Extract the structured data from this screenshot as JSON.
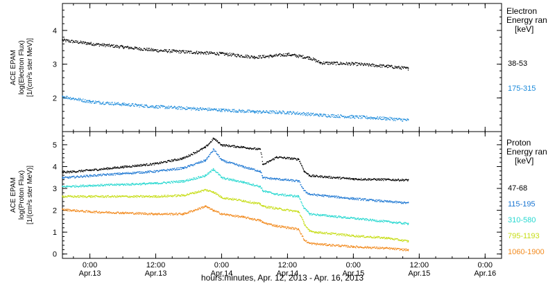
{
  "xaxis": {
    "label": "hours:minutes, Apr. 12, 2013 - Apr. 16, 2013",
    "tick_times": [
      "0:00",
      "12:00",
      "0:00",
      "12:00",
      "0:00",
      "12:00",
      "0:00"
    ],
    "tick_dates": [
      "Apr.13",
      "Apr.13",
      "Apr.14",
      "Apr.14",
      "Apr.15",
      "Apr.15",
      "Apr.16"
    ],
    "tick_hours": [
      0,
      12,
      24,
      36,
      48,
      60,
      72
    ],
    "range_hours": [
      -5,
      75
    ],
    "data_end_hours": 58
  },
  "chart_data": [
    {
      "type": "scatter",
      "name": "electron",
      "ylabel_lines": [
        "ACE EPAM",
        "log(Electron Flux)",
        "[1/(cm²s ster MeV)]"
      ],
      "ylim": [
        1.0,
        4.8
      ],
      "yticks": [
        2,
        3,
        4
      ],
      "legend": {
        "title_lines": [
          "Electron",
          "Energy ran"
        ],
        "unit": "[keV]",
        "placement": "right"
      },
      "series": [
        {
          "name": "38-53",
          "color": "#000000",
          "x": [
            -5,
            0,
            6,
            12,
            18,
            24,
            30,
            33,
            36,
            40,
            42,
            48,
            54,
            58
          ],
          "y": [
            3.72,
            3.62,
            3.52,
            3.42,
            3.37,
            3.32,
            3.22,
            3.25,
            3.3,
            3.2,
            3.05,
            3.02,
            2.95,
            2.88
          ]
        },
        {
          "name": "175-315",
          "color": "#1b8adb",
          "x": [
            -5,
            0,
            6,
            12,
            18,
            24,
            30,
            36,
            42,
            48,
            54,
            58
          ],
          "y": [
            2.05,
            1.9,
            1.82,
            1.75,
            1.7,
            1.65,
            1.6,
            1.58,
            1.5,
            1.45,
            1.4,
            1.35
          ]
        }
      ]
    },
    {
      "type": "scatter",
      "name": "proton",
      "ylabel_lines": [
        "ACE EPAM",
        "log(Proton Flux)",
        "[1/(cm²s ster MeV)]"
      ],
      "ylim": [
        -0.2,
        5.6
      ],
      "yticks": [
        0,
        1,
        2,
        3,
        4,
        5
      ],
      "legend": {
        "title_lines": [
          "Proton",
          "Energy ran"
        ],
        "unit": "[keV]",
        "placement": "right"
      },
      "series": [
        {
          "name": "47-68",
          "color": "#000000",
          "x": [
            -5,
            0,
            6,
            12,
            17,
            21,
            22.5,
            24,
            28,
            31,
            31.5,
            34,
            38,
            39,
            40,
            48,
            54,
            58
          ],
          "y": [
            3.75,
            3.85,
            4.0,
            4.15,
            4.4,
            4.9,
            5.3,
            5.0,
            4.9,
            4.8,
            4.1,
            4.45,
            4.35,
            3.8,
            3.6,
            3.45,
            3.42,
            3.4
          ]
        },
        {
          "name": "115-195",
          "color": "#1b76d2",
          "x": [
            -5,
            0,
            6,
            12,
            17,
            21,
            22.5,
            24,
            28,
            31,
            31.5,
            34,
            38,
            39,
            40,
            48,
            54,
            58
          ],
          "y": [
            3.5,
            3.6,
            3.7,
            3.8,
            3.95,
            4.3,
            4.8,
            4.3,
            4.0,
            3.8,
            3.5,
            3.45,
            3.35,
            2.9,
            2.75,
            2.55,
            2.42,
            2.35
          ]
        },
        {
          "name": "310-580",
          "color": "#26d8d0",
          "x": [
            -5,
            0,
            6,
            12,
            17,
            21,
            22.5,
            24,
            28,
            31,
            31.5,
            34,
            38,
            39,
            40,
            48,
            54,
            58
          ],
          "y": [
            3.1,
            3.15,
            3.2,
            3.25,
            3.35,
            3.6,
            3.9,
            3.5,
            3.3,
            3.1,
            2.9,
            2.75,
            2.65,
            2.1,
            1.85,
            1.65,
            1.5,
            1.4
          ]
        },
        {
          "name": "795-1193",
          "color": "#c6dd14",
          "x": [
            -5,
            0,
            6,
            12,
            17,
            21,
            22.5,
            24,
            28,
            31,
            31.5,
            34,
            38,
            39,
            40,
            48,
            54,
            58
          ],
          "y": [
            2.65,
            2.65,
            2.65,
            2.65,
            2.7,
            2.95,
            2.85,
            2.6,
            2.45,
            2.3,
            2.2,
            2.1,
            1.95,
            1.4,
            1.05,
            0.85,
            0.75,
            0.6
          ]
        },
        {
          "name": "1060-1900",
          "color": "#f28a1e",
          "x": [
            -5,
            0,
            6,
            12,
            17,
            21,
            22.5,
            24,
            28,
            31,
            31.5,
            34,
            38,
            39,
            40,
            48,
            54,
            58
          ],
          "y": [
            2.05,
            1.95,
            1.9,
            1.85,
            1.85,
            2.2,
            2.0,
            1.85,
            1.7,
            1.55,
            1.45,
            1.3,
            1.15,
            0.65,
            0.5,
            0.35,
            0.28,
            0.2
          ]
        }
      ]
    }
  ]
}
